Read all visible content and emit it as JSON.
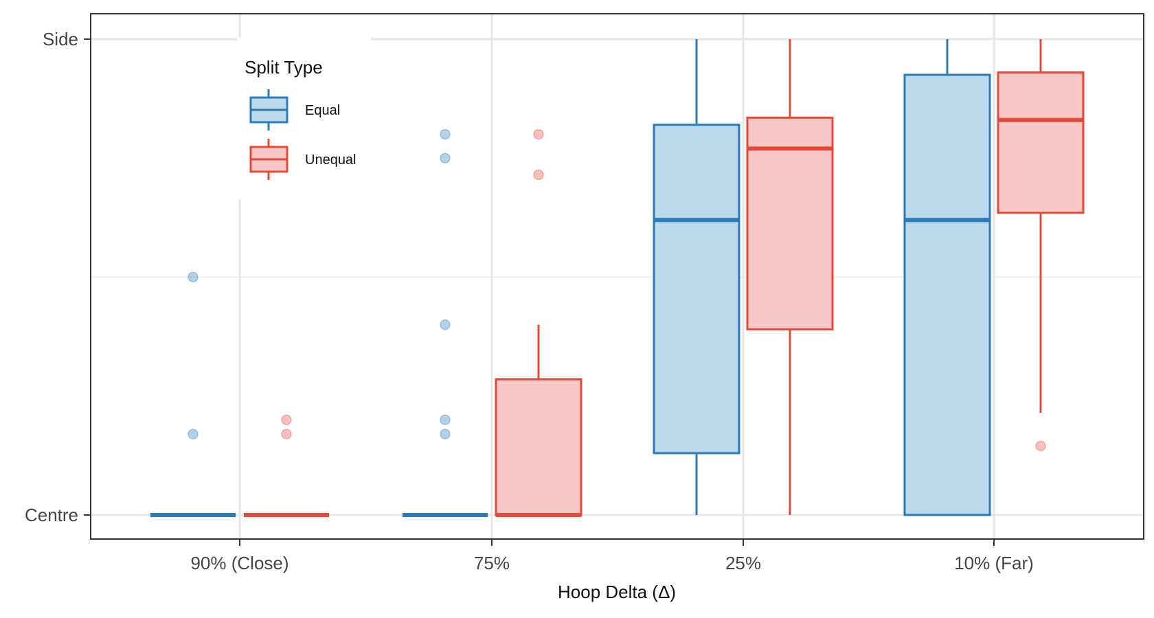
{
  "chart_data": {
    "type": "boxplot",
    "xlabel": "Hoop Delta (Δ)",
    "ylabel": "",
    "categories": [
      "90% (Close)",
      "75%",
      "25%",
      "10% (Far)"
    ],
    "y_ticks": [
      {
        "value": 0,
        "label": "Centre"
      },
      {
        "value": 1,
        "label": "Side"
      }
    ],
    "ylim": [
      -0.05,
      1.05
    ],
    "grid": true,
    "legend": {
      "title": "Split Type",
      "position": "top-left"
    },
    "series": [
      {
        "name": "Equal",
        "color": "#2b7bba",
        "fill": "#bcd8eb",
        "boxes": [
          {
            "min": 0,
            "q1": 0,
            "median": 0,
            "q3": 0,
            "max": 0,
            "outliers": [
              0.5,
              0.17
            ]
          },
          {
            "min": 0,
            "q1": 0,
            "median": 0,
            "q3": 0,
            "max": 0,
            "outliers": [
              0.8,
              0.75,
              0.4,
              0.2,
              0.17
            ]
          },
          {
            "min": 0,
            "q1": 0.13,
            "median": 0.62,
            "q3": 0.82,
            "max": 1,
            "outliers": []
          },
          {
            "min": 0,
            "q1": 0,
            "median": 0.62,
            "q3": 0.925,
            "max": 1,
            "outliers": []
          }
        ]
      },
      {
        "name": "Unequal",
        "color": "#e34a3b",
        "fill": "#f7c8c4",
        "boxes": [
          {
            "min": 0,
            "q1": 0,
            "median": 0,
            "q3": 0,
            "max": 0,
            "outliers": [
              0.2,
              0.17
            ]
          },
          {
            "min": 0,
            "q1": 0,
            "median": 0,
            "q3": 0.285,
            "max": 0.4,
            "outliers": [
              0.8,
              0.715
            ]
          },
          {
            "min": 0,
            "q1": 0.39,
            "median": 0.77,
            "q3": 0.835,
            "max": 1,
            "outliers": []
          },
          {
            "min": 0.215,
            "q1": 0.635,
            "median": 0.83,
            "q3": 0.93,
            "max": 1,
            "outliers": [
              0.145
            ]
          }
        ]
      }
    ]
  }
}
